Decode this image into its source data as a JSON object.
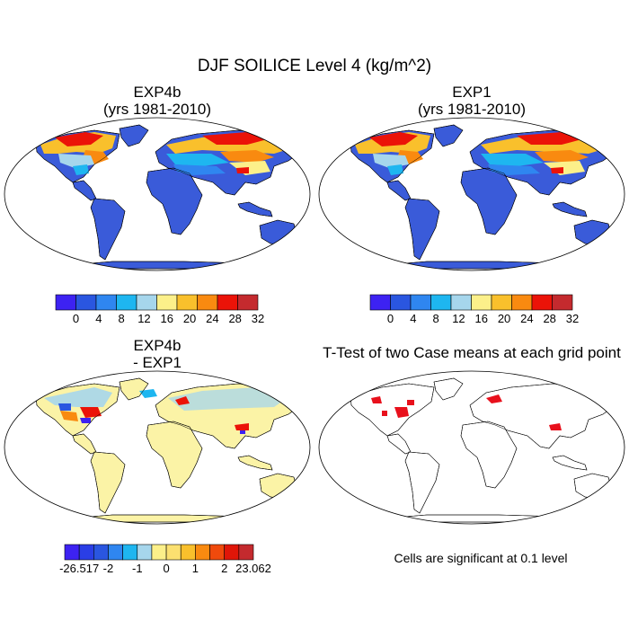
{
  "main_title": "DJF SOILICE Level 4 (kg/m^2)",
  "panels": [
    {
      "title_line1": "EXP4b",
      "title_line2": "(yrs 1981-2010)"
    },
    {
      "title_line1": "EXP1",
      "title_line2": "(yrs 1981-2010)"
    },
    {
      "title_line1": "EXP4b",
      "title_line2": "- EXP1"
    },
    {
      "title_line1": "T-Test of two Case means at each grid point",
      "title_line2": ""
    }
  ],
  "significance_note": "Cells are significant at 0.1 level",
  "colors": {
    "ocean_bg": "#ffffff",
    "land_low": "#3a5bd9",
    "diff_zero": "#fbf3a6",
    "significant": "#e8101c"
  },
  "chart_data": [
    {
      "type": "heatmap",
      "title": "EXP4b",
      "subtitle": "(yrs 1981-2010)",
      "projection": "robinson",
      "colorbar": {
        "labels": [
          "0",
          "4",
          "8",
          "12",
          "16",
          "20",
          "24",
          "28",
          "32"
        ],
        "colors": [
          "#3d22f2",
          "#2a56e0",
          "#2f86f0",
          "#1eb6f0",
          "#a6d6ec",
          "#fcf08a",
          "#f9c02c",
          "#f98a10",
          "#eb1308",
          "#c42a2e"
        ]
      }
    },
    {
      "type": "heatmap",
      "title": "EXP1",
      "subtitle": "(yrs 1981-2010)",
      "projection": "robinson",
      "colorbar": {
        "labels": [
          "0",
          "4",
          "8",
          "12",
          "16",
          "20",
          "24",
          "28",
          "32"
        ],
        "colors": [
          "#3d22f2",
          "#2a56e0",
          "#2f86f0",
          "#1eb6f0",
          "#a6d6ec",
          "#fcf08a",
          "#f9c02c",
          "#f98a10",
          "#eb1308",
          "#c42a2e"
        ]
      }
    },
    {
      "type": "heatmap",
      "title": "EXP4b",
      "subtitle": "- EXP1",
      "projection": "robinson",
      "colorbar": {
        "labels": [
          "-26.517",
          "-2",
          "-1",
          "0",
          "1",
          "2",
          "23.062"
        ],
        "colors": [
          "#3d22f2",
          "#2a3ee6",
          "#2a56e0",
          "#2f86f0",
          "#1eb6f0",
          "#a6d6ec",
          "#fcf08a",
          "#fbe070",
          "#f9c02c",
          "#f98a10",
          "#f04a0c",
          "#e01608",
          "#c42a2e"
        ]
      }
    },
    {
      "type": "heatmap",
      "title": "T-Test of two Case means at each grid point",
      "projection": "robinson",
      "note": "Cells are significant at 0.1 level"
    }
  ]
}
